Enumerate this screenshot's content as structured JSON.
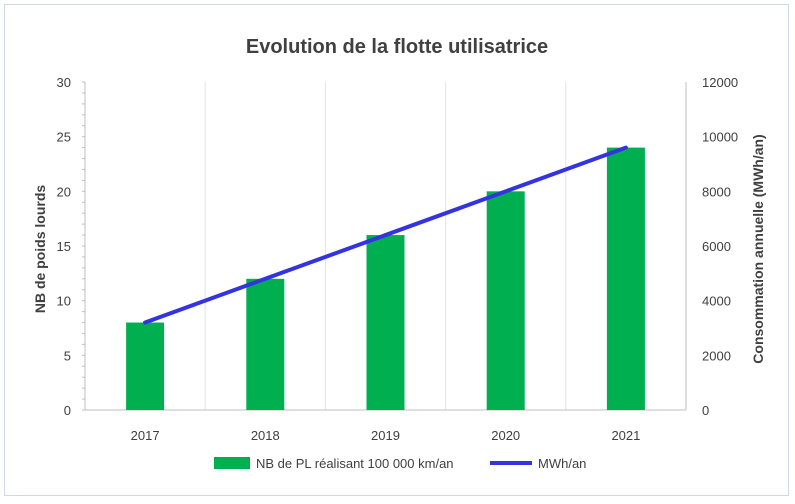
{
  "chart_data": {
    "type": "bar",
    "title": "Evolution de la flotte utilisatrice",
    "categories": [
      "2017",
      "2018",
      "2019",
      "2020",
      "2021"
    ],
    "series": [
      {
        "name": "NB de PL réalisant 100 000 km/an",
        "type": "bar",
        "axis": "left",
        "color": "#00b050",
        "values": [
          8,
          12,
          16,
          20,
          24
        ]
      },
      {
        "name": "MWh/an",
        "type": "line",
        "axis": "right",
        "color": "#3333e0",
        "values": [
          3200,
          4800,
          6400,
          8000,
          9600
        ]
      }
    ],
    "ylabel": "NB de poids lourds",
    "y2label": "Consommation annuelle (MWh/an)",
    "ylim": [
      0,
      30
    ],
    "yticks": [
      0,
      5,
      10,
      15,
      20,
      25,
      30
    ],
    "y2lim": [
      0,
      12000
    ],
    "y2ticks": [
      0,
      2000,
      4000,
      6000,
      8000,
      10000,
      12000
    ],
    "grid": "vertical",
    "legend": "bottom"
  }
}
